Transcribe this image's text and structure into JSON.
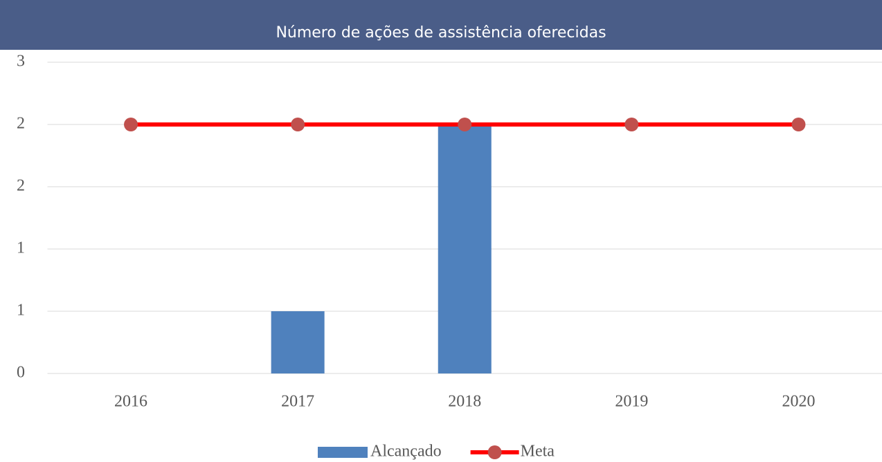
{
  "chart_data": {
    "type": "combo",
    "title": "Número de ações de assistência oferecidas",
    "categories": [
      "2016",
      "2017",
      "2018",
      "2019",
      "2020"
    ],
    "series": [
      {
        "name": "Alcançado",
        "type": "bar",
        "color": "#4f81bd",
        "values": [
          0,
          0.5,
          2,
          0,
          0
        ]
      },
      {
        "name": "Meta",
        "type": "line",
        "color": "#ff0000",
        "marker_color": "#c0504d",
        "values": [
          2,
          2,
          2,
          2,
          2
        ]
      }
    ],
    "ylim": [
      0,
      2.5
    ],
    "yticks": [
      0,
      {
        "value": 0.5,
        "label": "1"
      },
      1,
      {
        "value": 1.5,
        "label": "2"
      },
      2,
      {
        "value": 2.5,
        "label": "3"
      }
    ],
    "grid": true,
    "legend": "bottom"
  }
}
